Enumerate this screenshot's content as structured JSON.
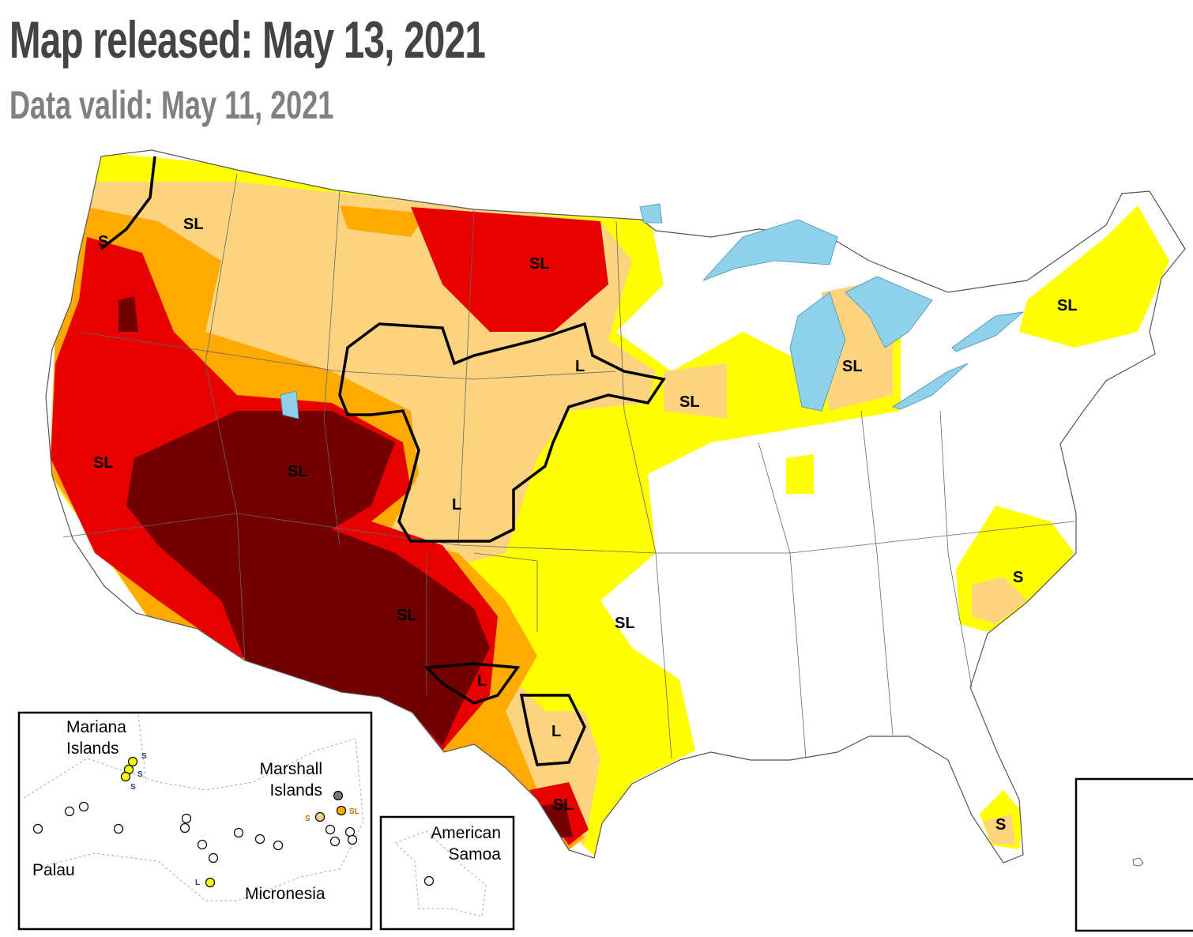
{
  "header": {
    "title": "Map released: May 13, 2021",
    "subtitle": "Data valid: May 11, 2021"
  },
  "drought_colors": {
    "D0": "#FFFF00",
    "D1": "#FCD37F",
    "D2": "#FFAA00",
    "D3": "#E60000",
    "D4": "#730000",
    "water": "#8FD0EA"
  },
  "impact_labels": [
    "S",
    "SL",
    "SL",
    "SL",
    "SL",
    "SL",
    "L",
    "SL",
    "L",
    "SL",
    "SL",
    "S",
    "SL",
    "L",
    "L",
    "SL",
    "S"
  ],
  "insets": {
    "pacific": {
      "labels": [
        "Mariana Islands",
        "Marshall Islands",
        "Palau",
        "Micronesia"
      ],
      "marker_labels": [
        "S",
        "S",
        "S",
        "S",
        "SL",
        "L"
      ]
    },
    "samoa": {
      "label": "American Samoa"
    }
  }
}
